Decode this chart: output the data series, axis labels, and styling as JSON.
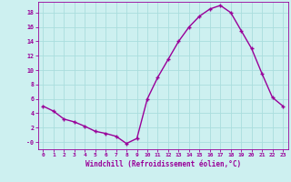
{
  "hours": [
    0,
    1,
    2,
    3,
    4,
    5,
    6,
    7,
    8,
    9,
    10,
    11,
    12,
    13,
    14,
    15,
    16,
    17,
    18,
    19,
    20,
    21,
    22,
    23
  ],
  "values": [
    5.0,
    4.3,
    3.2,
    2.8,
    2.2,
    1.5,
    1.2,
    0.8,
    -0.2,
    0.5,
    6.0,
    9.0,
    11.5,
    14.0,
    16.0,
    17.5,
    18.5,
    19.0,
    18.0,
    15.5,
    13.0,
    9.5,
    6.2,
    5.0
  ],
  "line_color": "#990099",
  "marker": "+",
  "bg_color": "#cdf0f0",
  "grid_color": "#aadddd",
  "xlabel": "Windchill (Refroidissement éolien,°C)",
  "xlabel_color": "#990099",
  "ylim": [
    -1.0,
    19.5
  ],
  "xlim": [
    -0.5,
    23.5
  ],
  "yticks": [
    0,
    2,
    4,
    6,
    8,
    10,
    12,
    14,
    16,
    18
  ],
  "ytick_labels": [
    "-0",
    "2",
    "4",
    "6",
    "8",
    "10",
    "12",
    "14",
    "16",
    "18"
  ],
  "xticks": [
    0,
    1,
    2,
    3,
    4,
    5,
    6,
    7,
    8,
    9,
    10,
    11,
    12,
    13,
    14,
    15,
    16,
    17,
    18,
    19,
    20,
    21,
    22,
    23
  ],
  "tick_color": "#990099",
  "axis_color": "#990099",
  "marker_size": 3,
  "line_width": 1.0
}
